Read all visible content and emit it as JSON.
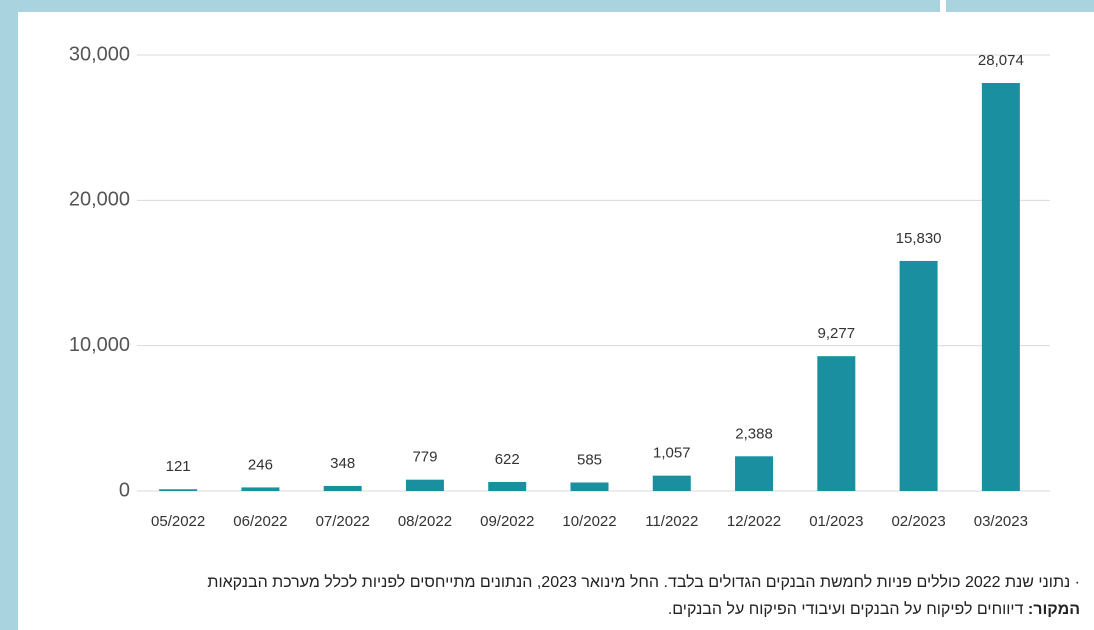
{
  "chart_data": {
    "type": "bar",
    "categories": [
      "05/2022",
      "06/2022",
      "07/2022",
      "08/2022",
      "09/2022",
      "10/2022",
      "11/2022",
      "12/2022",
      "01/2023",
      "02/2023",
      "03/2023"
    ],
    "values": [
      121,
      246,
      348,
      779,
      622,
      585,
      1057,
      2388,
      9277,
      15830,
      28074
    ],
    "value_labels": [
      "121",
      "246",
      "348",
      "779",
      "622",
      "585",
      "1,057",
      "2,388",
      "9,277",
      "15,830",
      "28,074"
    ],
    "color": "#1a8fa0",
    "ylim": [
      0,
      30000
    ],
    "yticks": [
      0,
      {
        "value": 10000,
        "label": "10,000"
      },
      {
        "value": 20000,
        "label": "20,000"
      },
      {
        "value": 30000,
        "label": "30,000"
      }
    ],
    "grid": true
  },
  "notes": {
    "note": "נתוני שנת 2022 כוללים פניות לחמשת הבנקים הגדולים בלבד. החל מינואר 2023, הנתונים מתייחסים לפניות לכלל מערכת הבנקאות",
    "source_label": "המקור:",
    "source": "דיווחים לפיקוח על הבנקים ועיבודי הפיקוח על הבנקים."
  }
}
